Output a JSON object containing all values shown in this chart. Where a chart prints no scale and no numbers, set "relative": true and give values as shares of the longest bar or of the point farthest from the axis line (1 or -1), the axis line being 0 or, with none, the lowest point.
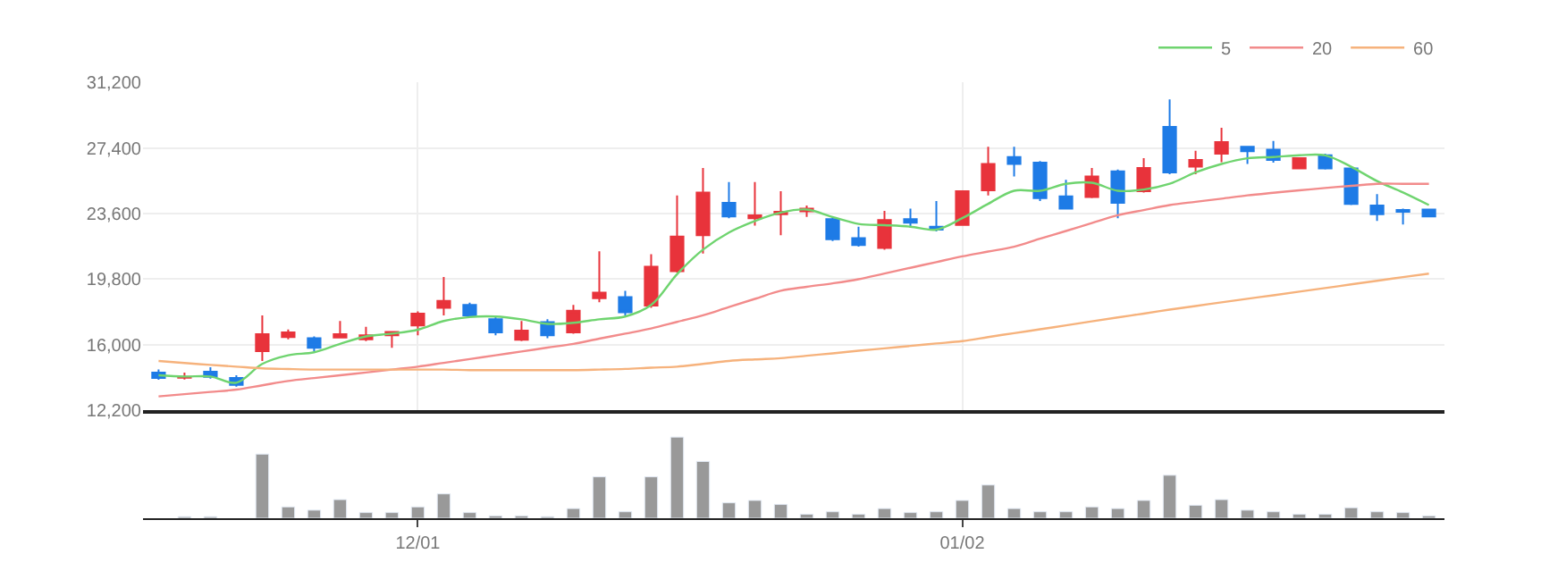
{
  "chart_data": [
    {
      "type": "candlestick",
      "categories": [
        null,
        null,
        null,
        null,
        null,
        null,
        null,
        null,
        null,
        null,
        null,
        null,
        null,
        null,
        null,
        null,
        null,
        null,
        null,
        null,
        null,
        null,
        null,
        null,
        null,
        null,
        null,
        null,
        null,
        null,
        null,
        null,
        null,
        null,
        null,
        null,
        null,
        null,
        null,
        null,
        null,
        null,
        null,
        null,
        null,
        null,
        null,
        null,
        null,
        null
      ],
      "ohlc": [
        [
          14400,
          14570,
          13980,
          14080
        ],
        [
          14100,
          14400,
          14000,
          14150
        ],
        [
          14450,
          14700,
          14050,
          14150
        ],
        [
          14080,
          14240,
          13580,
          13680
        ],
        [
          15630,
          17710,
          15070,
          16620
        ],
        [
          16450,
          16890,
          16320,
          16720
        ],
        [
          16390,
          16490,
          15630,
          15830
        ],
        [
          16420,
          17380,
          16420,
          16620
        ],
        [
          16320,
          17050,
          16220,
          16550
        ],
        [
          16550,
          16750,
          15830,
          16750
        ],
        [
          17120,
          17940,
          16550,
          17810
        ],
        [
          18140,
          19930,
          17710,
          18540
        ],
        [
          18310,
          18440,
          17610,
          17710
        ],
        [
          17480,
          17610,
          16560,
          16720
        ],
        [
          16290,
          17380,
          16220,
          16820
        ],
        [
          17320,
          17480,
          16390,
          16560
        ],
        [
          16720,
          18310,
          16650,
          17980
        ],
        [
          18700,
          21410,
          18470,
          19030
        ],
        [
          18770,
          19130,
          17710,
          17880
        ],
        [
          18270,
          21250,
          18140,
          20520
        ],
        [
          20260,
          24650,
          20190,
          22270
        ],
        [
          22340,
          26240,
          21280,
          24820
        ],
        [
          24220,
          25420,
          23330,
          23430
        ],
        [
          23330,
          25420,
          22900,
          23500
        ],
        [
          23560,
          24890,
          22340,
          23700
        ],
        [
          23730,
          24060,
          23400,
          23890
        ],
        [
          23270,
          23430,
          22010,
          22110
        ],
        [
          22180,
          22840,
          21680,
          21780
        ],
        [
          21610,
          23760,
          21510,
          23230
        ],
        [
          23270,
          23890,
          22840,
          23070
        ],
        [
          22840,
          24320,
          22570,
          22670
        ],
        [
          22940,
          24890,
          22940,
          24890
        ],
        [
          24950,
          27460,
          24650,
          26470
        ],
        [
          26870,
          27460,
          25750,
          26470
        ],
        [
          26540,
          26640,
          24320,
          24490
        ],
        [
          24590,
          25550,
          23830,
          23890
        ],
        [
          24550,
          26240,
          24490,
          25750
        ],
        [
          26040,
          26140,
          23330,
          24220
        ],
        [
          24890,
          26800,
          24820,
          26240
        ],
        [
          28620,
          30210,
          25880,
          25980
        ],
        [
          26310,
          27230,
          25880,
          26700
        ],
        [
          27070,
          28560,
          26570,
          27730
        ],
        [
          27460,
          27460,
          26470,
          27200
        ],
        [
          27300,
          27800,
          26540,
          26700
        ],
        [
          26210,
          26800,
          26210,
          26800
        ],
        [
          26970,
          27070,
          26140,
          26210
        ],
        [
          26210,
          26270,
          24090,
          24160
        ],
        [
          24060,
          24720,
          23170,
          23560
        ],
        [
          23800,
          23890,
          22970,
          23700
        ],
        [
          23830,
          23830,
          23430,
          23430
        ]
      ],
      "colors": [
        "#1e7be6",
        "#e8333b",
        "#1e7be6",
        "#1e7be6",
        "#e8333b",
        "#e8333b",
        "#1e7be6",
        "#e8333b",
        "#e8333b",
        "#e8333b",
        "#e8333b",
        "#e8333b",
        "#1e7be6",
        "#1e7be6",
        "#e8333b",
        "#1e7be6",
        "#e8333b",
        "#e8333b",
        "#1e7be6",
        "#e8333b",
        "#e8333b",
        "#e8333b",
        "#1e7be6",
        "#e8333b",
        "#e8333b",
        "#e8333b",
        "#1e7be6",
        "#1e7be6",
        "#e8333b",
        "#1e7be6",
        "#1e7be6",
        "#e8333b",
        "#e8333b",
        "#1e7be6",
        "#1e7be6",
        "#1e7be6",
        "#e8333b",
        "#1e7be6",
        "#e8333b",
        "#1e7be6",
        "#e8333b",
        "#e8333b",
        "#1e7be6",
        "#1e7be6",
        "#e8333b",
        "#1e7be6",
        "#1e7be6",
        "#1e7be6",
        "#1e7be6",
        "#1e7be6"
      ],
      "series": [
        {
          "type": "line",
          "name": "5",
          "color": "#6fd46f",
          "values": [
            14240,
            14170,
            14170,
            13810,
            14900,
            15400,
            15570,
            16060,
            16490,
            16650,
            16880,
            17380,
            17610,
            17640,
            17480,
            17215,
            17280,
            17480,
            17640,
            18310,
            20090,
            21510,
            22500,
            23170,
            23660,
            23830,
            23400,
            23000,
            22930,
            22840,
            22670,
            23330,
            24160,
            24920,
            24920,
            25320,
            25380,
            24920,
            24990,
            25320,
            25980,
            26470,
            26800,
            26870,
            26970,
            26970,
            26310,
            25480,
            24820,
            24090
          ]
        },
        {
          "type": "line",
          "name": "20",
          "color": "#f28b8b",
          "values": [
            13020,
            13150,
            13280,
            13410,
            13660,
            13910,
            14080,
            14240,
            14400,
            14570,
            14740,
            14960,
            15180,
            15400,
            15620,
            15840,
            16060,
            16360,
            16650,
            16950,
            17330,
            17710,
            18190,
            18660,
            19130,
            19360,
            19560,
            19800,
            20130,
            20460,
            20790,
            21120,
            21400,
            21680,
            22140,
            22590,
            23050,
            23500,
            23800,
            24090,
            24280,
            24460,
            24650,
            24800,
            24940,
            25080,
            25200,
            25320,
            25320,
            25320
          ]
        },
        {
          "type": "line",
          "name": "60",
          "color": "#f6b27c",
          "values": [
            15070,
            14950,
            14840,
            14740,
            14640,
            14600,
            14570,
            14570,
            14570,
            14570,
            14570,
            14570,
            14540,
            14540,
            14540,
            14540,
            14540,
            14570,
            14610,
            14680,
            14740,
            14900,
            15070,
            15160,
            15230,
            15370,
            15510,
            15660,
            15800,
            15940,
            16080,
            16220,
            16450,
            16680,
            16900,
            17130,
            17360,
            17590,
            17810,
            18040,
            18250,
            18460,
            18670,
            18870,
            19080,
            19290,
            19500,
            19710,
            19920,
            20120
          ]
        }
      ],
      "ylim": [
        12200,
        31200
      ],
      "yticks": [
        {
          "value": 12200,
          "label": "12,200"
        },
        {
          "value": 16000,
          "label": "16,000"
        },
        {
          "value": 19800,
          "label": "19,800"
        },
        {
          "value": 23600,
          "label": "23,600"
        },
        {
          "value": 27400,
          "label": "27,400"
        },
        {
          "value": 31200,
          "label": "31,200"
        }
      ],
      "grid": true,
      "legend": "top right",
      "tick_labels": "y"
    },
    {
      "type": "bar",
      "relative": true,
      "color": "#999999",
      "tick_labels": "x",
      "categories": [
        null,
        null,
        null,
        null,
        null,
        null,
        null,
        null,
        null,
        null,
        "12/01",
        null,
        null,
        null,
        null,
        null,
        null,
        null,
        null,
        null,
        null,
        null,
        null,
        null,
        null,
        null,
        null,
        null,
        null,
        null,
        null,
        "01/02",
        null,
        null,
        null,
        null,
        null,
        null,
        null,
        null,
        null,
        null,
        null,
        null,
        null,
        null,
        null,
        null,
        null,
        null
      ],
      "values": [
        null,
        0.02,
        0.02,
        null,
        0.79,
        0.14,
        0.1,
        0.23,
        0.07,
        0.07,
        0.14,
        0.3,
        0.07,
        0.03,
        0.03,
        0.02,
        0.12,
        0.51,
        0.08,
        0.51,
        1,
        0.7,
        0.19,
        0.22,
        0.17,
        0.05,
        0.08,
        0.05,
        0.12,
        0.07,
        0.08,
        0.22,
        0.41,
        0.12,
        0.08,
        0.08,
        0.14,
        0.12,
        0.22,
        0.53,
        0.16,
        0.23,
        0.1,
        0.08,
        0.05,
        0.05,
        0.13,
        0.08,
        0.07,
        0.03
      ]
    }
  ]
}
